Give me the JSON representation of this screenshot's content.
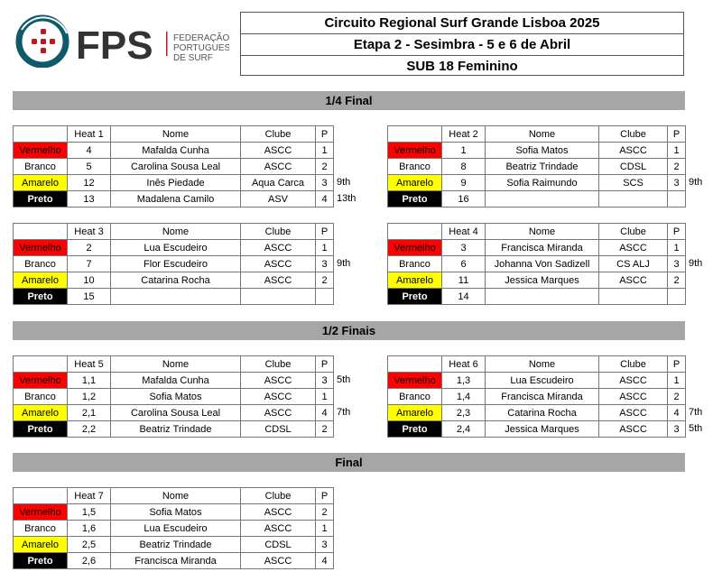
{
  "logo": {
    "text": "FPS",
    "sub": [
      "FEDERAÇÃO",
      "PORTUGUESA",
      "DE SURF"
    ],
    "colors": {
      "ring": "#0e5a6b",
      "cross": "#c0161d",
      "text": "#333333"
    }
  },
  "header": {
    "line1": "Circuito Regional Surf Grande Lisboa 2025",
    "line2": "Etapa 2 - Sesimbra - 5 e 6 de Abril",
    "line3": "SUB 18 Feminino"
  },
  "sections": {
    "quarter": "1/4 Final",
    "semi": "1/2 Finais",
    "final": "Final"
  },
  "col_headers": {
    "name": "Nome",
    "club": "Clube",
    "pos": "P"
  },
  "colors": {
    "Vermelho": "#ff0000",
    "Branco": "#ffffff",
    "Amarelo": "#ffff00",
    "Preto": "#000000"
  },
  "heats": [
    {
      "title": "Heat 1",
      "rows": [
        {
          "color": "Vermelho",
          "seed": "4",
          "name": "Mafalda Cunha",
          "club": "ASCC",
          "pos": "1",
          "place": ""
        },
        {
          "color": "Branco",
          "seed": "5",
          "name": "Carolina Sousa Leal",
          "club": "ASCC",
          "pos": "2",
          "place": ""
        },
        {
          "color": "Amarelo",
          "seed": "12",
          "name": "Inês Piedade",
          "club": "Aqua Carca",
          "pos": "3",
          "place": "9th"
        },
        {
          "color": "Preto",
          "seed": "13",
          "name": "Madalena Camilo",
          "club": "ASV",
          "pos": "4",
          "place": "13th"
        }
      ]
    },
    {
      "title": "Heat 2",
      "rows": [
        {
          "color": "Vermelho",
          "seed": "1",
          "name": "Sofia Matos",
          "club": "ASCC",
          "pos": "1",
          "place": ""
        },
        {
          "color": "Branco",
          "seed": "8",
          "name": "Beatriz Trindade",
          "club": "CDSL",
          "pos": "2",
          "place": ""
        },
        {
          "color": "Amarelo",
          "seed": "9",
          "name": "Sofia Raimundo",
          "club": "SCS",
          "pos": "3",
          "place": "9th"
        },
        {
          "color": "Preto",
          "seed": "16",
          "name": "",
          "club": "",
          "pos": "",
          "place": ""
        }
      ]
    },
    {
      "title": "Heat 3",
      "rows": [
        {
          "color": "Vermelho",
          "seed": "2",
          "name": "Lua Escudeiro",
          "club": "ASCC",
          "pos": "1",
          "place": ""
        },
        {
          "color": "Branco",
          "seed": "7",
          "name": "Flor Escudeiro",
          "club": "ASCC",
          "pos": "3",
          "place": "9th"
        },
        {
          "color": "Amarelo",
          "seed": "10",
          "name": "Catarina Rocha",
          "club": "ASCC",
          "pos": "2",
          "place": ""
        },
        {
          "color": "Preto",
          "seed": "15",
          "name": "",
          "club": "",
          "pos": "",
          "place": ""
        }
      ]
    },
    {
      "title": "Heat 4",
      "rows": [
        {
          "color": "Vermelho",
          "seed": "3",
          "name": "Francisca Miranda",
          "club": "ASCC",
          "pos": "1",
          "place": ""
        },
        {
          "color": "Branco",
          "seed": "6",
          "name": "Johanna Von Sadizell",
          "club": "CS ALJ",
          "pos": "3",
          "place": "9th"
        },
        {
          "color": "Amarelo",
          "seed": "11",
          "name": "Jessica Marques",
          "club": "ASCC",
          "pos": "2",
          "place": ""
        },
        {
          "color": "Preto",
          "seed": "14",
          "name": "",
          "club": "",
          "pos": "",
          "place": ""
        }
      ]
    },
    {
      "title": "Heat 5",
      "rows": [
        {
          "color": "Vermelho",
          "seed": "1,1",
          "name": "Mafalda Cunha",
          "club": "ASCC",
          "pos": "3",
          "place": "5th"
        },
        {
          "color": "Branco",
          "seed": "1,2",
          "name": "Sofia Matos",
          "club": "ASCC",
          "pos": "1",
          "place": ""
        },
        {
          "color": "Amarelo",
          "seed": "2,1",
          "name": "Carolina Sousa Leal",
          "club": "ASCC",
          "pos": "4",
          "place": "7th"
        },
        {
          "color": "Preto",
          "seed": "2,2",
          "name": "Beatriz Trindade",
          "club": "CDSL",
          "pos": "2",
          "place": ""
        }
      ]
    },
    {
      "title": "Heat 6",
      "rows": [
        {
          "color": "Vermelho",
          "seed": "1,3",
          "name": "Lua Escudeiro",
          "club": "ASCC",
          "pos": "1",
          "place": ""
        },
        {
          "color": "Branco",
          "seed": "1,4",
          "name": "Francisca Miranda",
          "club": "ASCC",
          "pos": "2",
          "place": ""
        },
        {
          "color": "Amarelo",
          "seed": "2,3",
          "name": "Catarina Rocha",
          "club": "ASCC",
          "pos": "4",
          "place": "7th"
        },
        {
          "color": "Preto",
          "seed": "2,4",
          "name": "Jessica Marques",
          "club": "ASCC",
          "pos": "3",
          "place": "5th"
        }
      ]
    },
    {
      "title": "Heat 7",
      "rows": [
        {
          "color": "Vermelho",
          "seed": "1,5",
          "name": "Sofia Matos",
          "club": "ASCC",
          "pos": "2",
          "place": ""
        },
        {
          "color": "Branco",
          "seed": "1,6",
          "name": "Lua Escudeiro",
          "club": "ASCC",
          "pos": "1",
          "place": ""
        },
        {
          "color": "Amarelo",
          "seed": "2,5",
          "name": "Beatriz Trindade",
          "club": "CDSL",
          "pos": "3",
          "place": ""
        },
        {
          "color": "Preto",
          "seed": "2,6",
          "name": "Francisca Miranda",
          "club": "ASCC",
          "pos": "4",
          "place": ""
        }
      ]
    }
  ]
}
